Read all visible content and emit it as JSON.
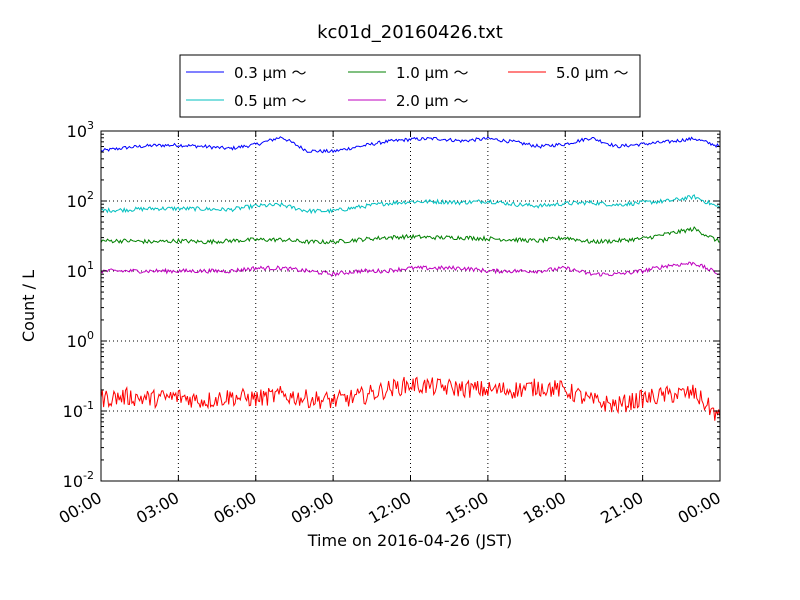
{
  "chart_data": {
    "type": "line",
    "title": "kc01d_20160426.txt",
    "xlabel": "Time on 2016-04-26 (JST)",
    "ylabel": "Count / L",
    "yscale": "log",
    "ylim": [
      0.01,
      1000
    ],
    "xlim": [
      "2016-04-26 00:00",
      "2016-04-27 00:00"
    ],
    "x_tick_labels": [
      "00:00",
      "03:00",
      "06:00",
      "09:00",
      "12:00",
      "15:00",
      "18:00",
      "21:00",
      "00:00"
    ],
    "y_ticks": [
      {
        "base": "10",
        "exp": "-2",
        "value": 0.01
      },
      {
        "base": "10",
        "exp": "-1",
        "value": 0.1
      },
      {
        "base": "10",
        "exp": "0",
        "value": 1
      },
      {
        "base": "10",
        "exp": "1",
        "value": 10
      },
      {
        "base": "10",
        "exp": "2",
        "value": 100
      },
      {
        "base": "10",
        "exp": "3",
        "value": 1000
      }
    ],
    "grid": true,
    "legend_position": "top-center, above plot, 3 columns",
    "x": [
      "00:00",
      "01:00",
      "02:00",
      "03:00",
      "04:00",
      "05:00",
      "06:00",
      "07:00",
      "08:00",
      "09:00",
      "10:00",
      "11:00",
      "12:00",
      "13:00",
      "14:00",
      "15:00",
      "16:00",
      "17:00",
      "18:00",
      "19:00",
      "20:00",
      "21:00",
      "22:00",
      "23:00",
      "24:00"
    ],
    "series": [
      {
        "name": "0.3 μm ～",
        "color": "#0000ff",
        "values": [
          520,
          580,
          620,
          630,
          600,
          560,
          640,
          820,
          520,
          510,
          600,
          700,
          760,
          780,
          720,
          780,
          700,
          600,
          650,
          800,
          600,
          650,
          700,
          780,
          600
        ]
      },
      {
        "name": "1.0 μm ～",
        "color": "#008000",
        "values": [
          27,
          27,
          26,
          27,
          26,
          27,
          28,
          28,
          26,
          26,
          28,
          30,
          31,
          30,
          30,
          29,
          28,
          27,
          30,
          26,
          27,
          29,
          34,
          40,
          26
        ]
      },
      {
        "name": "5.0 μm ～",
        "color": "#ff0000",
        "values": [
          0.15,
          0.16,
          0.15,
          0.16,
          0.14,
          0.16,
          0.15,
          0.17,
          0.15,
          0.14,
          0.16,
          0.2,
          0.24,
          0.22,
          0.21,
          0.2,
          0.2,
          0.22,
          0.2,
          0.14,
          0.12,
          0.15,
          0.17,
          0.18,
          0.08
        ]
      },
      {
        "name": "0.5 μm ～",
        "color": "#00bfbf",
        "values": [
          73,
          75,
          78,
          78,
          77,
          75,
          85,
          88,
          72,
          72,
          82,
          92,
          98,
          98,
          95,
          100,
          90,
          85,
          92,
          95,
          88,
          95,
          100,
          115,
          80
        ]
      },
      {
        "name": "2.0 μm ～",
        "color": "#bf00bf",
        "values": [
          10,
          10,
          10,
          10,
          10,
          10,
          11,
          11,
          10,
          9,
          10,
          10,
          11,
          11,
          11,
          10,
          10,
          10,
          11,
          9,
          9,
          10,
          12,
          13,
          9
        ]
      }
    ]
  }
}
